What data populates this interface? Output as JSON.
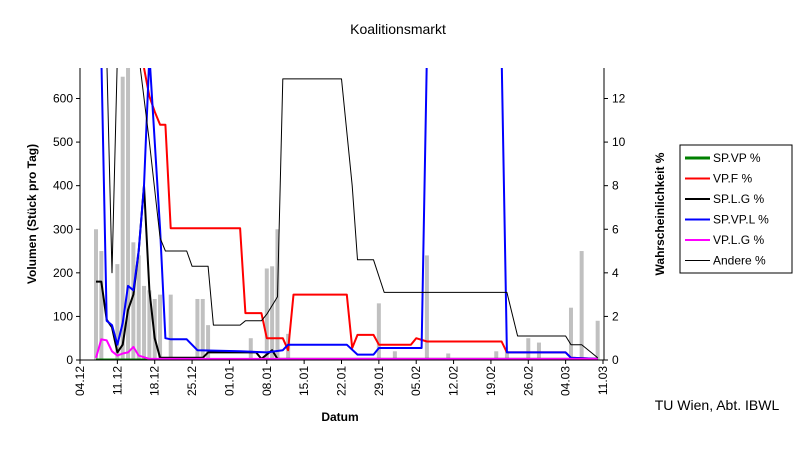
{
  "chart_data": {
    "type": "line",
    "title": "Koalitionsmarkt",
    "x_label": "Datum",
    "y_label": "Volumen (Stück pro Tag)",
    "y2_label": "Wahrscheinlichkeit %",
    "footer": "TU Wien, Abt. IBWL",
    "legend": "right",
    "ylim": [
      0,
      670
    ],
    "yticks": [
      0,
      100,
      200,
      300,
      400,
      500,
      600
    ],
    "y2lim": [
      0,
      13.4
    ],
    "y2ticks": [
      0,
      2,
      4,
      6,
      8,
      10,
      12
    ],
    "xticks": [
      "04.12",
      "11.12",
      "18.12",
      "25.12",
      "01.01",
      "08.01",
      "15.01",
      "22.01",
      "29.01",
      "05.02",
      "12.02",
      "19.02",
      "26.02",
      "04.03",
      "11.03"
    ],
    "bars": {
      "color": "#c0c0c0",
      "x": [
        "07.12",
        "08.12",
        "11.12",
        "12.12",
        "13.12",
        "14.12",
        "15.12",
        "16.12",
        "17.12",
        "18.12",
        "19.12",
        "21.12",
        "26.12",
        "27.12",
        "28.12",
        "05.01",
        "08.01",
        "09.01",
        "10.01",
        "12.01",
        "29.01",
        "01.02",
        "07.02",
        "11.02",
        "20.02",
        "22.02",
        "26.02",
        "28.02",
        "05.03",
        "07.03",
        "10.03"
      ],
      "values": [
        300,
        250,
        220,
        650,
        670,
        270,
        240,
        170,
        160,
        140,
        150,
        150,
        140,
        140,
        80,
        50,
        210,
        215,
        300,
        60,
        130,
        20,
        240,
        15,
        20,
        20,
        50,
        40,
        120,
        250,
        90
      ]
    },
    "series": [
      {
        "name": "SP.VP %",
        "color": "#008000",
        "axis": "y2",
        "width": 3,
        "x": [
          "07.12",
          "10.03"
        ],
        "values": [
          0,
          0
        ]
      },
      {
        "name": "VP.F %",
        "color": "#ff0000",
        "axis": "y2",
        "width": 2,
        "x": [
          "16.12",
          "17.12",
          "18.12",
          "19.12",
          "20.12",
          "21.12",
          "03.01",
          "04.01",
          "07.01",
          "08.01",
          "11.01",
          "12.01",
          "13.01",
          "23.01",
          "24.01",
          "25.01",
          "28.01",
          "29.01",
          "04.02",
          "05.02",
          "07.02",
          "21.02",
          "22.02",
          "04.03",
          "05.03",
          "10.03"
        ],
        "values": [
          13.4,
          12.1,
          11.4,
          10.8,
          10.8,
          6.05,
          6.05,
          2.15,
          2.15,
          1.0,
          1.0,
          0.45,
          3.0,
          3.0,
          0.55,
          1.15,
          1.15,
          0.7,
          0.7,
          1.0,
          0.85,
          0.85,
          0.35,
          0.35,
          0.1,
          0.05
        ]
      },
      {
        "name": "SP.L.G %",
        "color": "#000000",
        "axis": "y2",
        "width": 2,
        "x": [
          "07.12",
          "08.12",
          "09.12",
          "10.12",
          "11.12",
          "12.12",
          "13.12",
          "14.12",
          "15.12",
          "16.12",
          "17.12",
          "18.12",
          "19.12",
          "27.12",
          "28.12",
          "06.01",
          "07.01",
          "09.01",
          "10.01",
          "10.03"
        ],
        "values": [
          3.6,
          3.6,
          1.85,
          1.5,
          0.35,
          0.7,
          2.3,
          3.0,
          5.0,
          8.0,
          3.2,
          1.0,
          0.1,
          0.1,
          0.35,
          0.35,
          0.05,
          0.45,
          0.05,
          0.05
        ]
      },
      {
        "name": "SP.VP.L %",
        "color": "#0000ff",
        "axis": "y2",
        "width": 2,
        "x": [
          "08.12",
          "09.12",
          "10.12",
          "11.12",
          "12.12",
          "13.12",
          "14.12",
          "15.12",
          "16.12",
          "17.12",
          "19.12",
          "20.12",
          "21.12",
          "24.12",
          "26.12",
          "03.01",
          "08.01",
          "11.01",
          "12.01",
          "23.01",
          "25.01",
          "28.01",
          "29.01",
          "06.02",
          "07.02",
          "21.02",
          "22.02",
          "04.03",
          "05.03",
          "10.03"
        ],
        "values": [
          14,
          1.8,
          1.6,
          0.7,
          1.7,
          3.4,
          3.2,
          5.0,
          8.0,
          14,
          6.0,
          1.0,
          0.95,
          0.95,
          0.45,
          0.4,
          0.35,
          0.45,
          0.7,
          0.7,
          0.25,
          0.25,
          0.55,
          0.55,
          14,
          14,
          0.35,
          0.35,
          0.1,
          0.05
        ]
      },
      {
        "name": "VP.L.G %",
        "color": "#ff00ff",
        "axis": "y2",
        "width": 2,
        "x": [
          "07.12",
          "08.12",
          "09.12",
          "10.12",
          "11.12",
          "12.12",
          "13.12",
          "14.12",
          "15.12",
          "17.12",
          "10.03"
        ],
        "values": [
          0.1,
          0.95,
          0.9,
          0.4,
          0.2,
          0.3,
          0.35,
          0.6,
          0.2,
          0.05,
          0.05
        ]
      },
      {
        "name": "Andere %",
        "color": "#000000",
        "axis": "y2",
        "width": 1,
        "x": [
          "07.12",
          "09.12",
          "10.12",
          "11.12",
          "15.12",
          "17.12",
          "19.12",
          "20.12",
          "24.12",
          "25.12",
          "28.12",
          "29.12",
          "03.01",
          "04.01",
          "07.01",
          "08.01",
          "10.01",
          "11.01",
          "22.01",
          "24.01",
          "25.01",
          "28.01",
          "30.01",
          "22.02",
          "24.02",
          "04.03",
          "05.03",
          "07.03",
          "10.03"
        ],
        "values": [
          14,
          14,
          4,
          14,
          14,
          10,
          5.6,
          5.0,
          5.0,
          4.3,
          4.3,
          1.6,
          1.6,
          1.8,
          1.8,
          2.1,
          2.9,
          12.9,
          12.9,
          8.0,
          4.6,
          4.6,
          3.1,
          3.1,
          1.1,
          1.1,
          0.7,
          0.7,
          0.1
        ]
      }
    ]
  }
}
